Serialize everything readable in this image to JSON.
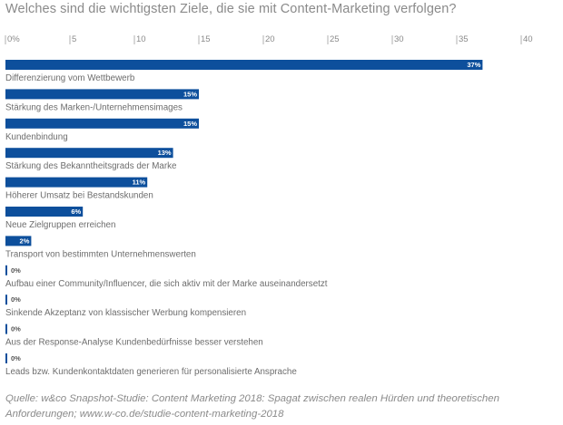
{
  "title": "Welches sind die wichtigsten Ziele, die sie mit Content-Marketing verfolgen?",
  "source": "Quelle: w&co Snapshot-Studie: Content Marketing 2018: Spagat zwischen realen Hürden und theoretischen Anforderungen; www.w-co.de/studie-content-marketing-2018",
  "colors": {
    "bar": "#0d4f9c",
    "text": "#6d6d6d",
    "title": "#8a8a8a",
    "tick": "#b0b0b0"
  },
  "chart_data": {
    "type": "bar",
    "orientation": "horizontal",
    "title": "Welches sind die wichtigsten Ziele, die sie mit Content-Marketing verfolgen?",
    "xlim": [
      0,
      40
    ],
    "xticks": [
      "0%",
      "5",
      "10",
      "15",
      "20",
      "25",
      "30",
      "35",
      "40"
    ],
    "grid": false,
    "categories": [
      "Differenzierung vom Wettbewerb",
      "Stärkung des Marken-/Unternehmensimages",
      "Kundenbindung",
      "Stärkung des Bekanntheitsgrads der Marke",
      "Höherer Umsatz bei Bestandskunden",
      "Neue Zielgruppen erreichen",
      "Transport von bestimmten Unternehmenswerten",
      "Aufbau einer Community/Influencer, die sich aktiv mit der Marke auseinandersetzt",
      "Sinkende Akzeptanz von klassischer Werbung kompensieren",
      "Aus der Response-Analyse Kundenbedürfnisse besser verstehen",
      "Leads bzw. Kundenkontaktdaten generieren für personalisierte Ansprache"
    ],
    "values": [
      37,
      15,
      15,
      13,
      11,
      6,
      2,
      0,
      0,
      0,
      0
    ],
    "value_labels": [
      "37%",
      "15%",
      "15%",
      "13%",
      "11%",
      "6%",
      "2%",
      "0%",
      "0%",
      "0%",
      "0%"
    ]
  }
}
